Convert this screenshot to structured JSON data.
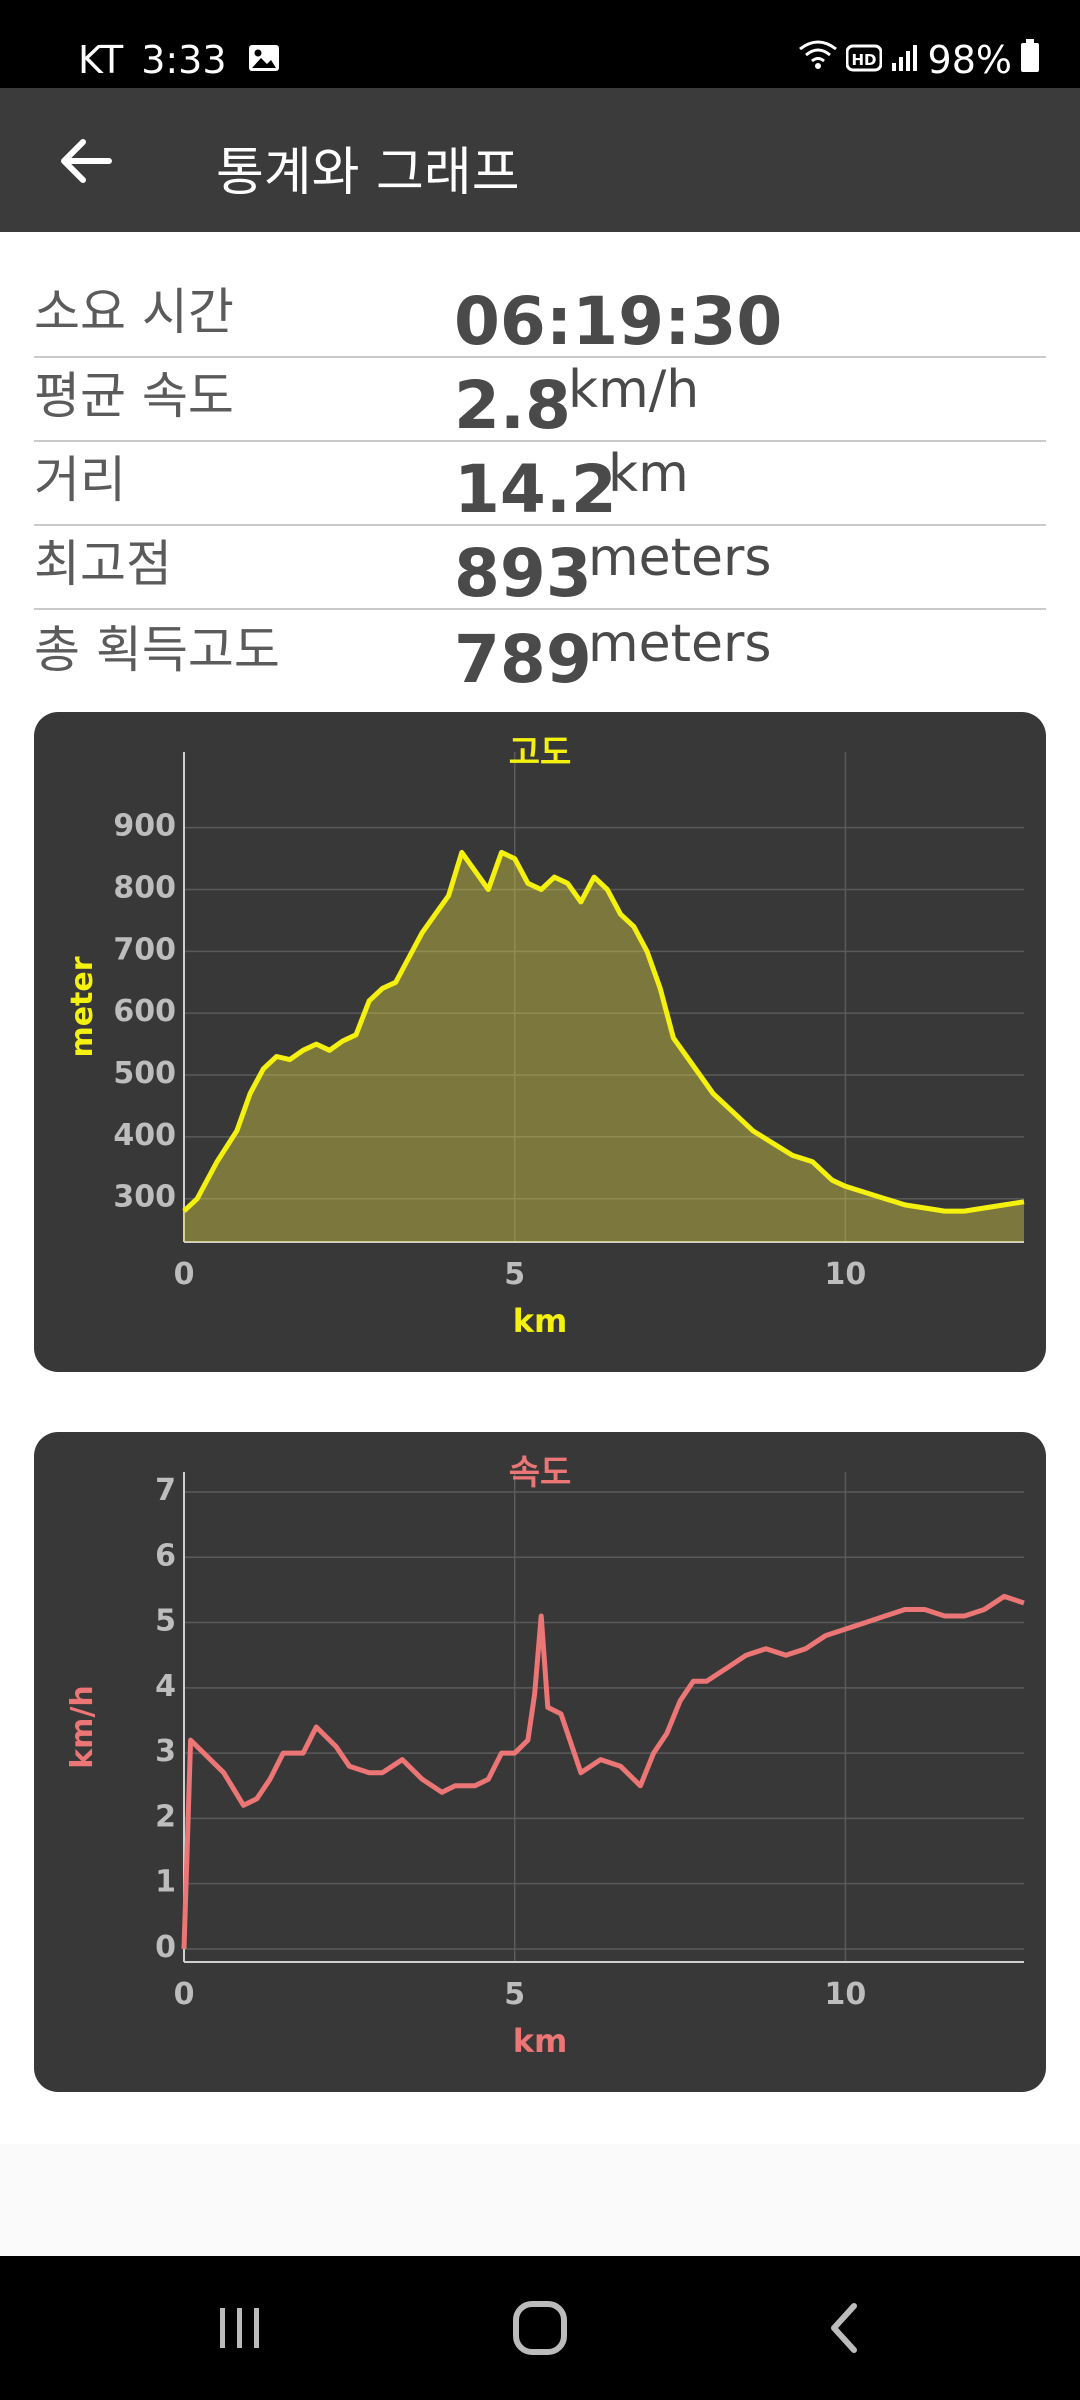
{
  "status_bar": {
    "carrier": "KT",
    "time": "3:33",
    "battery": "98%",
    "icons": [
      "gallery-icon",
      "wifi-icon",
      "hd-icon",
      "signal-icon",
      "battery-icon"
    ]
  },
  "app_bar": {
    "title": "통계와 그래프"
  },
  "stats": [
    {
      "label": "소요 시간",
      "value": "06:19:30",
      "unit": ""
    },
    {
      "label": "평균 속도",
      "value": "2.8",
      "unit": "km/h"
    },
    {
      "label": "거리",
      "value": "14.2",
      "unit": "km"
    },
    {
      "label": "최고점",
      "value": "893",
      "unit": "meters"
    },
    {
      "label": "총 획득고도",
      "value": "789",
      "unit": "meters"
    }
  ],
  "colors": {
    "altitude": "#f5f10f",
    "speed": "#ec7575",
    "card": "#383838",
    "app_bar": "#3b3b3b"
  },
  "chart_data": [
    {
      "type": "area",
      "title": "고도",
      "xlabel": "km",
      "ylabel": "meter",
      "xlim": [
        0,
        12.7
      ],
      "ylim": [
        230,
        990
      ],
      "x_ticks": [
        0,
        5,
        10
      ],
      "y_ticks": [
        300,
        400,
        500,
        600,
        700,
        800,
        900
      ],
      "grid": true,
      "x": [
        0,
        0.2,
        0.5,
        0.8,
        1.0,
        1.2,
        1.4,
        1.6,
        1.8,
        2.0,
        2.2,
        2.4,
        2.6,
        2.8,
        3.0,
        3.2,
        3.4,
        3.6,
        3.8,
        4.0,
        4.2,
        4.4,
        4.6,
        4.8,
        5.0,
        5.2,
        5.4,
        5.6,
        5.8,
        6.0,
        6.2,
        6.4,
        6.6,
        6.8,
        7.0,
        7.2,
        7.4,
        7.6,
        7.8,
        8.0,
        8.3,
        8.6,
        8.9,
        9.2,
        9.5,
        9.8,
        10.0,
        10.3,
        10.6,
        10.9,
        11.2,
        11.5,
        11.8,
        12.1,
        12.4,
        12.7
      ],
      "y": [
        280,
        300,
        360,
        410,
        470,
        510,
        530,
        525,
        540,
        550,
        540,
        555,
        565,
        620,
        640,
        650,
        690,
        730,
        760,
        790,
        860,
        830,
        800,
        860,
        850,
        810,
        800,
        820,
        810,
        780,
        820,
        800,
        760,
        740,
        700,
        640,
        560,
        530,
        500,
        470,
        440,
        410,
        390,
        370,
        360,
        330,
        320,
        310,
        300,
        290,
        285,
        280,
        280,
        285,
        290,
        295
      ]
    },
    {
      "type": "line",
      "title": "속도",
      "xlabel": "km",
      "ylabel": "km/h",
      "xlim": [
        0,
        12.7
      ],
      "ylim": [
        -0.2,
        7.0
      ],
      "x_ticks": [
        0,
        5,
        10
      ],
      "y_ticks": [
        0,
        1,
        2,
        3,
        4,
        5,
        6,
        7
      ],
      "grid": true,
      "x": [
        0,
        0.1,
        0.3,
        0.6,
        0.9,
        1.1,
        1.3,
        1.5,
        1.8,
        2.0,
        2.3,
        2.5,
        2.8,
        3.0,
        3.3,
        3.6,
        3.9,
        4.1,
        4.4,
        4.6,
        4.8,
        5.0,
        5.2,
        5.3,
        5.4,
        5.5,
        5.7,
        6.0,
        6.3,
        6.6,
        6.9,
        7.1,
        7.3,
        7.5,
        7.7,
        7.9,
        8.2,
        8.5,
        8.8,
        9.1,
        9.4,
        9.7,
        10.0,
        10.3,
        10.6,
        10.9,
        11.2,
        11.5,
        11.8,
        12.1,
        12.4,
        12.7
      ],
      "y": [
        0,
        3.2,
        3.0,
        2.7,
        2.2,
        2.3,
        2.6,
        3.0,
        3.0,
        3.4,
        3.1,
        2.8,
        2.7,
        2.7,
        2.9,
        2.6,
        2.4,
        2.5,
        2.5,
        2.6,
        3.0,
        3.0,
        3.2,
        3.9,
        5.1,
        3.7,
        3.6,
        2.7,
        2.9,
        2.8,
        2.5,
        3.0,
        3.3,
        3.8,
        4.1,
        4.1,
        4.3,
        4.5,
        4.6,
        4.5,
        4.6,
        4.8,
        4.9,
        5.0,
        5.1,
        5.2,
        5.2,
        5.1,
        5.1,
        5.2,
        5.4,
        5.3
      ]
    }
  ]
}
